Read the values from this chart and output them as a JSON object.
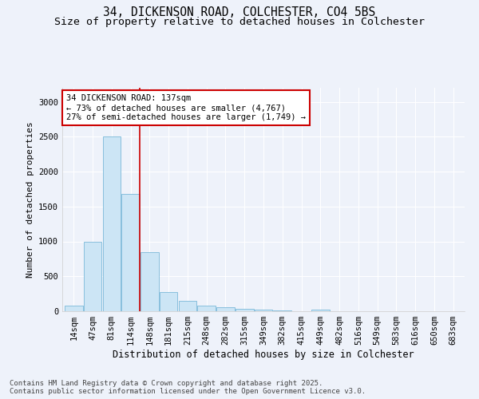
{
  "title1": "34, DICKENSON ROAD, COLCHESTER, CO4 5BS",
  "title2": "Size of property relative to detached houses in Colchester",
  "xlabel": "Distribution of detached houses by size in Colchester",
  "ylabel": "Number of detached properties",
  "categories": [
    "14sqm",
    "47sqm",
    "81sqm",
    "114sqm",
    "148sqm",
    "181sqm",
    "215sqm",
    "248sqm",
    "282sqm",
    "315sqm",
    "349sqm",
    "382sqm",
    "415sqm",
    "449sqm",
    "482sqm",
    "516sqm",
    "549sqm",
    "583sqm",
    "616sqm",
    "650sqm",
    "683sqm"
  ],
  "values": [
    75,
    1000,
    2500,
    1680,
    850,
    280,
    150,
    75,
    60,
    40,
    20,
    10,
    5,
    25,
    5,
    0,
    3,
    0,
    0,
    0,
    0
  ],
  "bar_color": "#cce5f5",
  "bar_edge_color": "#7ab8d8",
  "vline_x_bar": 4,
  "vline_color": "#cc0000",
  "annotation_text": "34 DICKENSON ROAD: 137sqm\n← 73% of detached houses are smaller (4,767)\n27% of semi-detached houses are larger (1,749) →",
  "annotation_box_color": "#ffffff",
  "annotation_box_edge": "#cc0000",
  "ylim": [
    0,
    3200
  ],
  "yticks": [
    0,
    500,
    1000,
    1500,
    2000,
    2500,
    3000
  ],
  "bg_color": "#eef2fa",
  "footer": "Contains HM Land Registry data © Crown copyright and database right 2025.\nContains public sector information licensed under the Open Government Licence v3.0.",
  "title1_fontsize": 10.5,
  "title2_fontsize": 9.5,
  "xlabel_fontsize": 8.5,
  "ylabel_fontsize": 8,
  "tick_fontsize": 7.5,
  "footer_fontsize": 6.5,
  "ann_fontsize": 7.5
}
